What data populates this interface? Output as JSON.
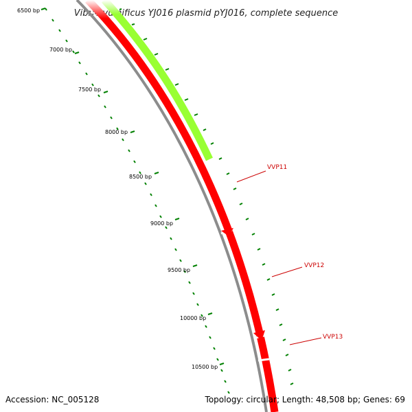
{
  "title": "Vibrio vulnificus YJ016 plasmid pYJ016, complete sequence",
  "footer": {
    "accession": "Accession: NC_005128",
    "summary": "Topology: circular; Length: 48,508 bp; Genes: 69"
  },
  "ruler": {
    "labels": [
      "6500 bp",
      "7000 bp",
      "7500 bp",
      "8000 bp",
      "8500 bp",
      "9000 bp",
      "9500 bp",
      "10000 bp",
      "10500 bp"
    ]
  },
  "genes": [
    {
      "name": "VVP11"
    },
    {
      "name": "VVP12"
    },
    {
      "name": "VVP13"
    }
  ],
  "colors": {
    "backbone": "#8c8c8c",
    "cds": "#ff0000",
    "feature": "#99ff33",
    "tick": "#008000",
    "label": "#cc0000"
  }
}
